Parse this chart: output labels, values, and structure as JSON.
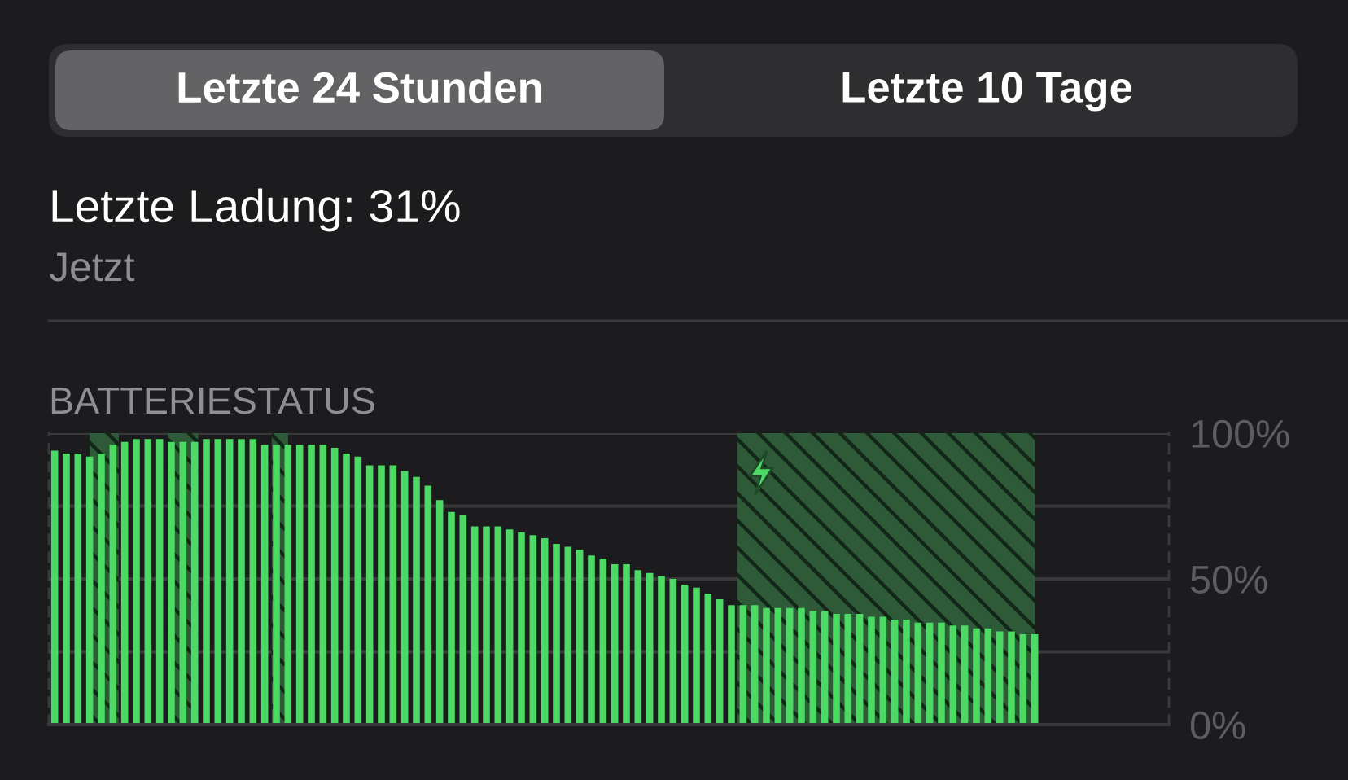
{
  "chart_data": {
    "type": "bar",
    "title": "BATTERIESTATUS",
    "annotations": [
      "Letzte 24 Stunden",
      "Letzte 10 Tage",
      "Letzte Ladung: 31%",
      "Jetzt"
    ],
    "categories": [
      null,
      null,
      null,
      null,
      null,
      null,
      null,
      null,
      null,
      null,
      null,
      null,
      null,
      null,
      null,
      null,
      null,
      null,
      null,
      null,
      null,
      null,
      null,
      null,
      null,
      null,
      null,
      null,
      null,
      null,
      null,
      null,
      null,
      null,
      null,
      null,
      null,
      null,
      null,
      null,
      null,
      null,
      null,
      null,
      null,
      null,
      null,
      null,
      null,
      null,
      null,
      null,
      null,
      null,
      null,
      null,
      null,
      null,
      null,
      null,
      null,
      null,
      null,
      null,
      null,
      null,
      null,
      null,
      null,
      null,
      null,
      null,
      null,
      null,
      null,
      null,
      null,
      null,
      null,
      null,
      null,
      null,
      null,
      null,
      null,
      null,
      null,
      null,
      null,
      null,
      null,
      null,
      null,
      null,
      null,
      null
    ],
    "values": [
      94,
      93,
      93,
      92,
      93,
      96,
      97,
      98,
      98,
      98,
      97,
      97,
      97,
      98,
      98,
      98,
      98,
      98,
      96,
      96,
      96,
      96,
      96,
      96,
      95,
      93,
      92,
      89,
      89,
      89,
      87,
      85,
      82,
      77,
      73,
      72,
      68,
      68,
      68,
      67,
      66,
      65,
      64,
      62,
      61,
      60,
      58,
      57,
      55,
      55,
      53,
      52,
      51,
      50,
      48,
      47,
      45,
      43,
      41,
      41,
      41,
      40,
      40,
      40,
      40,
      39,
      39,
      38,
      38,
      38,
      37,
      37,
      36,
      36,
      35,
      35,
      35,
      34,
      34,
      33,
      33,
      32,
      32,
      31,
      31,
      null,
      null,
      null,
      null,
      null,
      null,
      null,
      null,
      null,
      null,
      null
    ],
    "color": "#4cd964",
    "ylim": [
      0,
      100
    ],
    "yticks": [
      {
        "value": 0,
        "label": "0%"
      },
      {
        "value": 25,
        "label": null
      },
      {
        "value": 50,
        "label": "50%"
      },
      {
        "value": 75,
        "label": null
      },
      {
        "value": 100,
        "label": "100%"
      }
    ],
    "grid": "y",
    "tick_labels": "y"
  }
}
